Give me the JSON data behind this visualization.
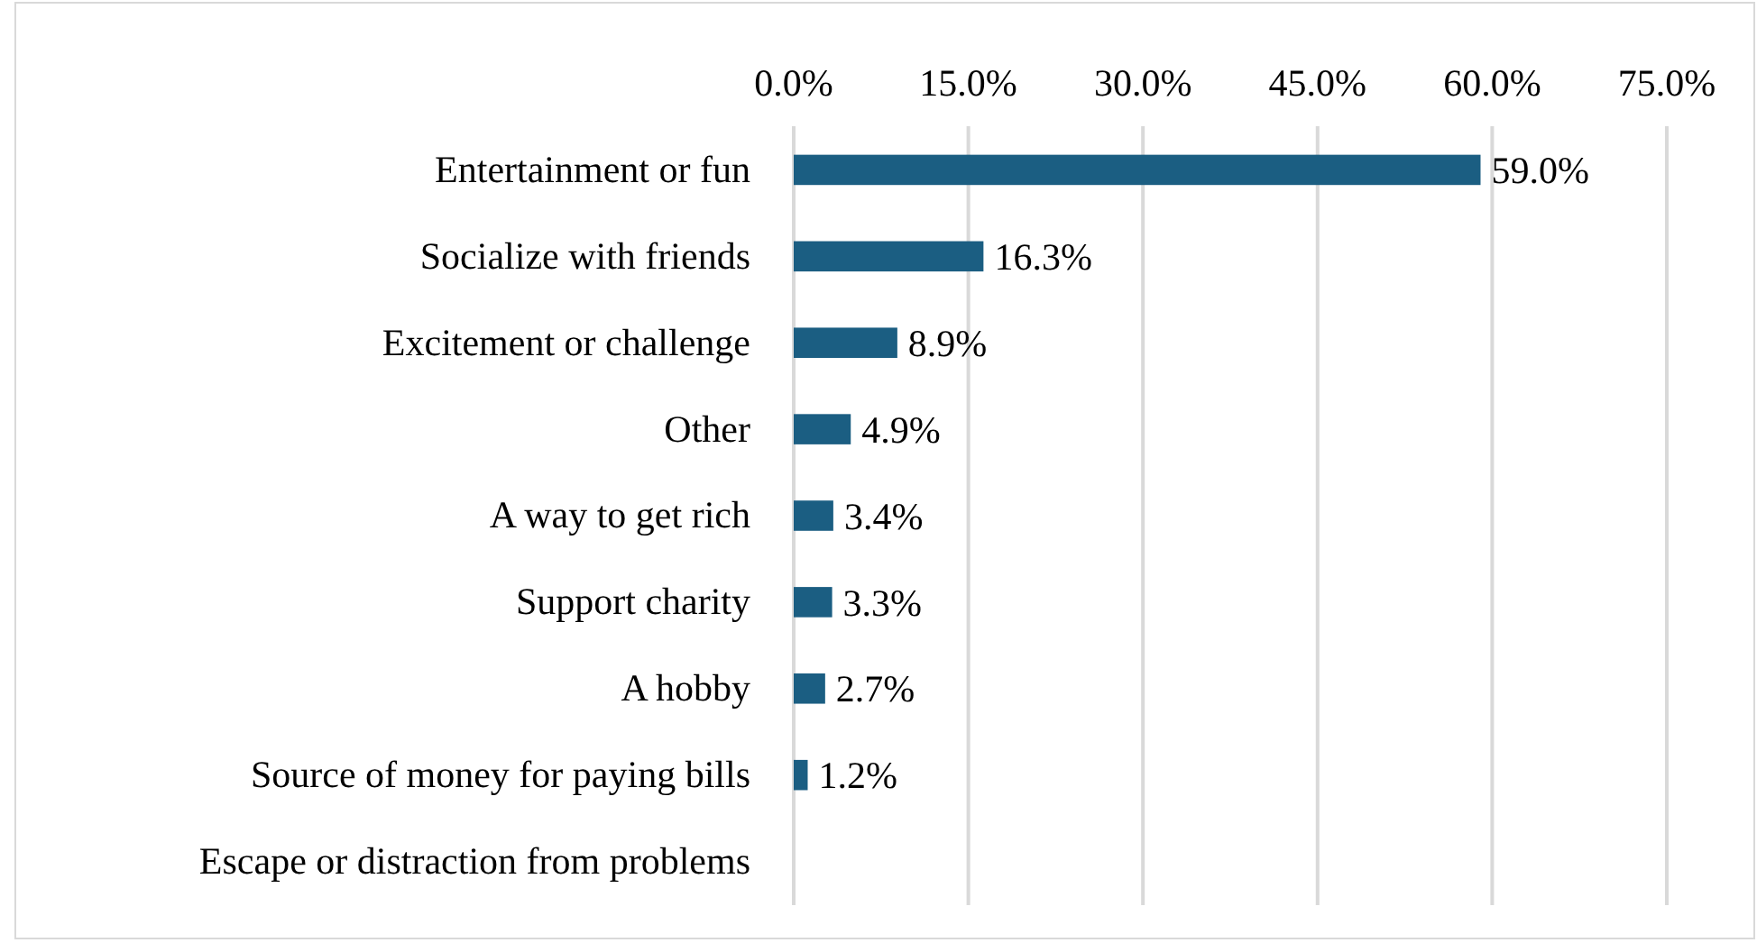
{
  "chart_data": {
    "type": "bar",
    "orientation": "horizontal",
    "categories": [
      "Entertainment or fun",
      "Socialize with friends",
      "Excitement or challenge",
      "Other",
      "A way to get rich",
      "Support charity",
      "A hobby",
      "Source of money for paying bills",
      "Escape or distraction from problems"
    ],
    "values": [
      59.0,
      16.3,
      8.9,
      4.9,
      3.4,
      3.3,
      2.7,
      1.2,
      null
    ],
    "value_labels": [
      "59.0%",
      "16.3%",
      "8.9%",
      "4.9%",
      "3.4%",
      "3.3%",
      "2.7%",
      "1.2%",
      null
    ],
    "color": "#1b5e82",
    "xlim": [
      0,
      75
    ],
    "xticks": [
      {
        "value": 0,
        "label": "0.0%"
      },
      {
        "value": 15,
        "label": "15.0%"
      },
      {
        "value": 30,
        "label": "30.0%"
      },
      {
        "value": 45,
        "label": "45.0%"
      },
      {
        "value": 60,
        "label": "60.0%"
      },
      {
        "value": 75,
        "label": "75.0%"
      }
    ],
    "grid": "x"
  }
}
